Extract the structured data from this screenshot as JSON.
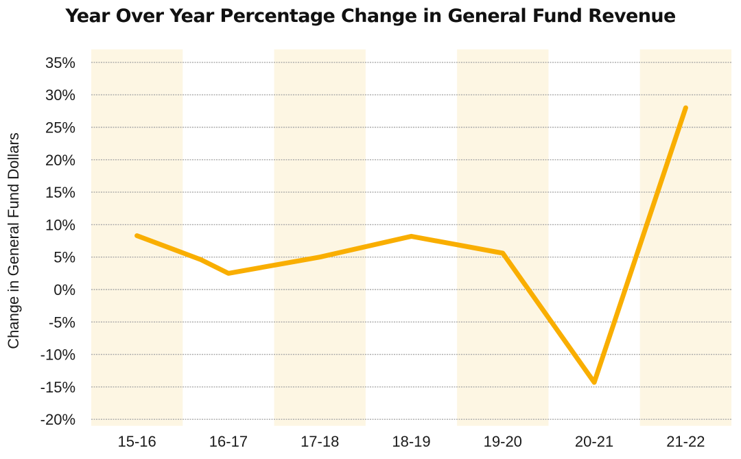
{
  "chart_data": {
    "type": "line",
    "title": "Year Over Year Percentage Change in General Fund Revenue",
    "ylabel": "Change in General Fund Dollars",
    "xlabel": "",
    "categories": [
      "15-16",
      "16-17",
      "17-18",
      "18-19",
      "19-20",
      "20-21",
      "21-22"
    ],
    "series": [
      {
        "x": [
          0,
          0.7,
          1,
          2,
          3,
          4,
          5,
          6
        ],
        "values": [
          8.3,
          4.6,
          2.5,
          5.0,
          8.2,
          5.6,
          -14.3,
          28.0
        ]
      }
    ],
    "yticks": [
      "35%",
      "30%",
      "25%",
      "20%",
      "15%",
      "10%",
      "5%",
      "0%",
      "-5%",
      "-10%",
      "-15%",
      "-20%"
    ],
    "ylim": [
      -21,
      37
    ],
    "grid": true,
    "banded_categories": [
      "15-16",
      "17-18",
      "19-20",
      "21-22"
    ],
    "colors": {
      "line": "#F9AE00",
      "band": "#FDF6E3",
      "grid": "#A8A8A8",
      "text": "#1a1a1a"
    }
  }
}
